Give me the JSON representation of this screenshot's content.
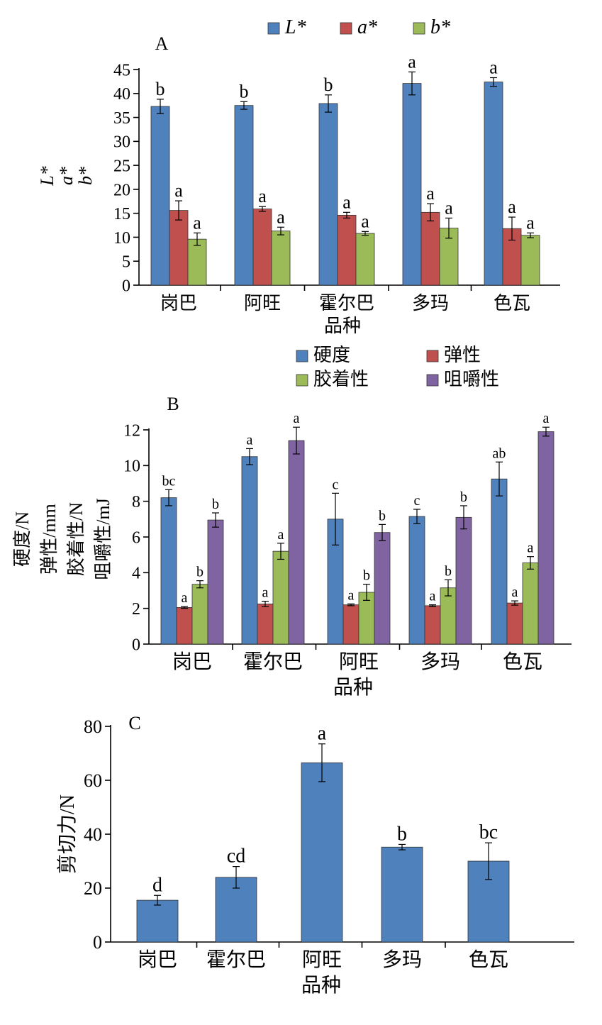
{
  "chart_data": [
    {
      "type": "bar",
      "panel_label": "A",
      "title": "",
      "categories": [
        "岗巴",
        "阿旺",
        "霍尔巴",
        "多玛",
        "色瓦"
      ],
      "xlabel": "品种",
      "ylabel_lines": [
        "L*",
        "a*",
        "b*"
      ],
      "ylim": [
        0,
        45
      ],
      "yticks": [
        0,
        5,
        10,
        15,
        20,
        25,
        30,
        35,
        40,
        45
      ],
      "legend_position": "top",
      "series": [
        {
          "name": "L*",
          "color": "#4f81bd",
          "values": [
            37.3,
            37.5,
            37.9,
            42.1,
            42.4
          ],
          "errors": [
            1.5,
            0.8,
            1.8,
            2.4,
            0.9
          ],
          "letters": [
            "b",
            "b",
            "b",
            "a",
            "a"
          ]
        },
        {
          "name": "a*",
          "color": "#c0504d",
          "values": [
            15.6,
            15.9,
            14.6,
            15.2,
            11.8
          ],
          "errors": [
            2.0,
            0.5,
            0.6,
            1.8,
            2.4
          ],
          "letters": [
            "a",
            "a",
            "a",
            "a",
            "a"
          ]
        },
        {
          "name": "b*",
          "color": "#9bbb59",
          "values": [
            9.6,
            11.3,
            10.8,
            11.9,
            10.4
          ],
          "errors": [
            1.3,
            0.8,
            0.4,
            2.1,
            0.5
          ],
          "letters": [
            "a",
            "a",
            "a",
            "a",
            "a"
          ]
        }
      ]
    },
    {
      "type": "bar",
      "panel_label": "B",
      "title": "",
      "categories": [
        "岗巴",
        "霍尔巴",
        "阿旺",
        "多玛",
        "色瓦"
      ],
      "xlabel": "品种",
      "ylabel_lines": [
        "硬度/N",
        "弹性/mm",
        "胶着性/N",
        "咀嚼性/mJ"
      ],
      "ylim": [
        0,
        12
      ],
      "yticks": [
        0,
        2,
        4,
        6,
        8,
        10,
        12
      ],
      "legend_position": "top",
      "series": [
        {
          "name": "硬度",
          "color": "#4f81bd",
          "values": [
            8.2,
            10.5,
            7.0,
            7.15,
            9.25
          ],
          "errors": [
            0.45,
            0.45,
            1.45,
            0.4,
            0.95
          ],
          "letters": [
            "bc",
            "a",
            "c",
            "c",
            "ab"
          ]
        },
        {
          "name": "弹性",
          "color": "#c0504d",
          "values": [
            2.05,
            2.25,
            2.2,
            2.15,
            2.3
          ],
          "errors": [
            0.05,
            0.15,
            0.05,
            0.05,
            0.12
          ],
          "letters": [
            "a",
            "a",
            "a",
            "a",
            "a"
          ]
        },
        {
          "name": "胶着性",
          "color": "#9bbb59",
          "values": [
            3.35,
            5.2,
            2.9,
            3.15,
            4.55
          ],
          "errors": [
            0.2,
            0.45,
            0.45,
            0.45,
            0.35
          ],
          "letters": [
            "b",
            "a",
            "b",
            "b",
            "a"
          ]
        },
        {
          "name": "咀嚼性",
          "color": "#8064a2",
          "values": [
            6.95,
            11.4,
            6.25,
            7.1,
            11.9
          ],
          "errors": [
            0.4,
            0.75,
            0.45,
            0.65,
            0.25
          ],
          "letters": [
            "b",
            "a",
            "b",
            "b",
            "a"
          ]
        }
      ]
    },
    {
      "type": "bar",
      "panel_label": "C",
      "title": "",
      "categories": [
        "岗巴",
        "霍尔巴",
        "阿旺",
        "多玛",
        "色瓦"
      ],
      "xlabel": "品种",
      "ylabel_lines": [
        "剪切力/N"
      ],
      "ylim": [
        0,
        80
      ],
      "yticks": [
        0,
        20,
        40,
        60,
        80
      ],
      "legend_position": "none",
      "series": [
        {
          "name": "",
          "color": "#4f81bd",
          "values": [
            15.5,
            24.0,
            66.5,
            35.2,
            30.0
          ],
          "errors": [
            1.8,
            4.0,
            7.0,
            1.0,
            6.8
          ],
          "letters": [
            "d",
            "cd",
            "a",
            "b",
            "bc"
          ]
        }
      ]
    }
  ]
}
